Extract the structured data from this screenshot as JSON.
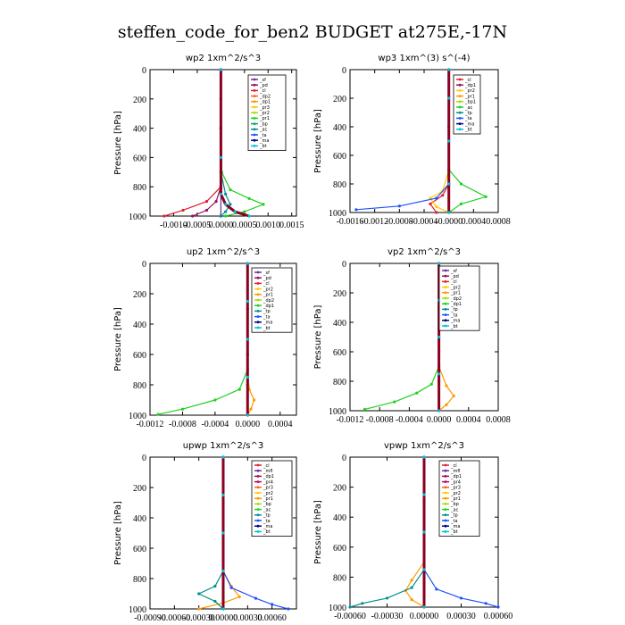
{
  "figure_title": "steffen_code_for_ben2  BUDGET at275E,-17N",
  "chart_data": [
    {
      "type": "line",
      "title": "wp2   1xm^2/s^3",
      "ylabel": "Pressure [hPa]",
      "xlim": [
        -0.0015,
        0.0016
      ],
      "ylim": [
        1000,
        0
      ],
      "xticks": [
        -0.001,
        -0.0005,
        0.0,
        0.0005,
        0.001,
        0.0015
      ],
      "xtick_labels": [
        "-0.0010",
        "-0.0005",
        "0.0000",
        "0.0005",
        "0.0010",
        "0.0015"
      ],
      "yticks": [
        0,
        200,
        400,
        600,
        800,
        1000
      ],
      "legend": [
        "_sf",
        "_pd",
        "_cl",
        "_dp2",
        "_dp1",
        "_pr3",
        "_pr2",
        "_pr1",
        "_bp",
        "_ac",
        "_ta",
        "_ma",
        "_bt"
      ],
      "colors": [
        "#7030a0",
        "#9a1060",
        "#e02030",
        "#ff6020",
        "#ff9900",
        "#ffcc00",
        "#a0e000",
        "#20d020",
        "#00b060",
        "#009090",
        "#2050ff",
        "#000080",
        "#00c0e0"
      ],
      "series": [
        {
          "name": "_sf",
          "x": [
            0,
            0,
            0,
            0,
            0,
            0
          ],
          "y": [
            0,
            200,
            400,
            600,
            800,
            1000
          ]
        },
        {
          "name": "_pd",
          "x": [
            0,
            0,
            0,
            -0.0001,
            -0.0003,
            -0.0006
          ],
          "y": [
            0,
            400,
            800,
            900,
            960,
            1000
          ]
        },
        {
          "name": "_cl",
          "x": [
            0,
            0,
            0,
            -0.0003,
            -0.0008,
            -0.0012
          ],
          "y": [
            0,
            400,
            800,
            900,
            960,
            1000
          ]
        },
        {
          "name": "_pr1",
          "x": [
            0,
            2e-05,
            0.0002,
            0.0006,
            0.0009,
            0.0005,
            0.0001
          ],
          "y": [
            0,
            700,
            820,
            880,
            920,
            970,
            1000
          ]
        },
        {
          "name": "_ac",
          "x": [
            0,
            0,
            0.0001,
            0.0002,
            0.0001,
            0
          ],
          "y": [
            0,
            700,
            850,
            920,
            970,
            1000
          ]
        },
        {
          "name": "_bt",
          "x": [
            0,
            0,
            0,
            0.0001,
            0.0003,
            0.0006
          ],
          "y": [
            0,
            600,
            850,
            920,
            970,
            1000
          ]
        }
      ]
    },
    {
      "type": "line",
      "title": "wp3   1xm^(3) s^(-4)",
      "ylabel": "Pressure [hPa]",
      "xlim": [
        -0.0016,
        0.0008
      ],
      "ylim": [
        1000,
        0
      ],
      "xticks": [
        -0.0016,
        -0.0012,
        -0.0008,
        -0.0004,
        0.0,
        0.0004,
        0.0008
      ],
      "xtick_labels": [
        "-0.0016",
        "-0.0012",
        "-0.0008",
        "-0.0004",
        "-0.0000",
        "0.0004",
        "0.0008"
      ],
      "yticks": [
        0,
        200,
        400,
        600,
        800,
        1000
      ],
      "legend": [
        "_cl",
        "_dp1",
        "_pr2",
        "_pr1",
        "_bp1",
        "_ac",
        "_tp",
        "_ta",
        "_ma",
        "_bt"
      ],
      "colors": [
        "#e02030",
        "#9a1060",
        "#ffcc00",
        "#ff9900",
        "#a0e000",
        "#20d020",
        "#009090",
        "#2050ff",
        "#000080",
        "#00c0e0"
      ],
      "series": [
        {
          "name": "_cl",
          "x": [
            0,
            0,
            0,
            -0.0001,
            -0.0003,
            -0.0002
          ],
          "y": [
            0,
            400,
            800,
            880,
            940,
            1000
          ]
        },
        {
          "name": "_pr2",
          "x": [
            0,
            0,
            -0.0001,
            -0.0003,
            -0.0002,
            0
          ],
          "y": [
            0,
            700,
            850,
            900,
            960,
            1000
          ]
        },
        {
          "name": "_ac",
          "x": [
            0,
            0,
            0.0002,
            0.0006,
            0.0002,
            0
          ],
          "y": [
            0,
            700,
            800,
            890,
            940,
            1000
          ]
        },
        {
          "name": "_ta",
          "x": [
            0,
            0,
            -0.0002,
            -0.0008,
            -0.0015
          ],
          "y": [
            0,
            800,
            900,
            955,
            980
          ]
        },
        {
          "name": "_bt",
          "x": [
            0,
            0,
            0,
            0,
            0
          ],
          "y": [
            0,
            200,
            500,
            800,
            1000
          ]
        }
      ]
    },
    {
      "type": "line",
      "title": "up2   1xm^2/s^3",
      "ylabel": "Pressure [hPa]",
      "xlim": [
        -0.0012,
        0.0006
      ],
      "ylim": [
        1000,
        0
      ],
      "xticks": [
        -0.0012,
        -0.0008,
        -0.0004,
        0.0,
        0.0004
      ],
      "xtick_labels": [
        "-0.0012",
        "-0.0008",
        "-0.0004",
        "0.0000",
        "0.0004"
      ],
      "yticks": [
        0,
        200,
        400,
        600,
        800,
        1000
      ],
      "legend": [
        "_sf",
        "_pd",
        "_cl",
        "_pr2",
        "_pr1",
        "_dp2",
        "_dp1",
        "_tp",
        "_ta",
        "_ma",
        "_bt"
      ],
      "colors": [
        "#7030a0",
        "#9a1060",
        "#e02030",
        "#ffcc00",
        "#ff9900",
        "#a0e000",
        "#20d020",
        "#009090",
        "#2050ff",
        "#000080",
        "#00c0e0"
      ],
      "series": [
        {
          "name": "_pd",
          "x": [
            0,
            0,
            0,
            0,
            0
          ],
          "y": [
            0,
            300,
            600,
            800,
            1000
          ]
        },
        {
          "name": "_pr1",
          "x": [
            0,
            0,
            2e-05,
            8e-05,
            4e-05,
            0
          ],
          "y": [
            0,
            700,
            830,
            900,
            960,
            1000
          ]
        },
        {
          "name": "_dp1",
          "x": [
            0,
            0,
            -0.0001,
            -0.0004,
            -0.0008,
            -0.0011
          ],
          "y": [
            0,
            700,
            830,
            900,
            960,
            995
          ]
        },
        {
          "name": "_bt",
          "x": [
            0,
            0,
            0,
            0,
            0
          ],
          "y": [
            0,
            250,
            500,
            750,
            1000
          ]
        }
      ]
    },
    {
      "type": "line",
      "title": "vp2   1xm^2/s^3",
      "ylabel": "Pressure [hPa]",
      "xlim": [
        -0.0012,
        0.0008
      ],
      "ylim": [
        1000,
        0
      ],
      "xticks": [
        -0.0012,
        -0.0008,
        -0.0004,
        0.0,
        0.0004,
        0.0008
      ],
      "xtick_labels": [
        "-0.0012",
        "-0.0008",
        "-0.0004",
        "0.0000",
        "0.0004",
        "0.0008"
      ],
      "yticks": [
        0,
        200,
        400,
        600,
        800,
        1000
      ],
      "legend": [
        "_sf",
        "_pd",
        "_cl",
        "_pr2",
        "_pr1",
        "_dp2",
        "_dp1",
        "_tp",
        "_ta",
        "_ma",
        "_bt"
      ],
      "colors": [
        "#7030a0",
        "#9a1060",
        "#e02030",
        "#ffcc00",
        "#ff9900",
        "#a0e000",
        "#20d020",
        "#009090",
        "#2050ff",
        "#000080",
        "#00c0e0"
      ],
      "series": [
        {
          "name": "_pd",
          "x": [
            0,
            0,
            0,
            0,
            0
          ],
          "y": [
            0,
            300,
            600,
            800,
            1000
          ]
        },
        {
          "name": "_pr1",
          "x": [
            0,
            0,
            0.0001,
            0.0002,
            0.0001,
            0
          ],
          "y": [
            0,
            700,
            830,
            900,
            960,
            1000
          ]
        },
        {
          "name": "_dp1",
          "x": [
            0,
            0,
            -0.0001,
            -0.0003,
            -0.0006,
            -0.001
          ],
          "y": [
            0,
            700,
            820,
            880,
            940,
            990
          ]
        },
        {
          "name": "_bt",
          "x": [
            0,
            0,
            0,
            0,
            0
          ],
          "y": [
            0,
            250,
            500,
            750,
            1000
          ]
        }
      ]
    },
    {
      "type": "line",
      "title": "upwp   1xm^2/s^3",
      "ylabel": "Pressure [hPa]",
      "xlim": [
        -0.0009,
        0.0009
      ],
      "ylim": [
        1000,
        0
      ],
      "xticks": [
        -0.0009,
        -0.0006,
        -0.0003,
        0.0,
        0.0003,
        0.0006
      ],
      "xtick_labels": [
        "-0.00090",
        "-0.00060",
        "-0.00030",
        "0.00000",
        "0.00030",
        "0.00060"
      ],
      "yticks": [
        0,
        200,
        400,
        600,
        800,
        1000
      ],
      "legend": [
        "_cl",
        "_mfl",
        "_dp1",
        "_pr4",
        "_pr3",
        "_pr2",
        "_pr1",
        "_bp",
        "_ac",
        "_tp",
        "_ta",
        "_ma",
        "_bt"
      ],
      "colors": [
        "#e02030",
        "#7030a0",
        "#9a1060",
        "#c00060",
        "#ff6020",
        "#ffcc00",
        "#ff9900",
        "#a0e000",
        "#20d020",
        "#009090",
        "#2050ff",
        "#000080",
        "#00c0e0"
      ],
      "series": [
        {
          "name": "_cl",
          "x": [
            0,
            0,
            0,
            0,
            0
          ],
          "y": [
            0,
            300,
            600,
            800,
            1000
          ]
        },
        {
          "name": "_pr1",
          "x": [
            0,
            0,
            0.0001,
            0.0002,
            0,
            -0.0003
          ],
          "y": [
            0,
            750,
            850,
            920,
            960,
            1000
          ]
        },
        {
          "name": "_tp",
          "x": [
            0,
            0,
            -0.0001,
            -0.0003,
            -0.0001,
            0
          ],
          "y": [
            0,
            750,
            850,
            900,
            950,
            1000
          ]
        },
        {
          "name": "_ta",
          "x": [
            0,
            0,
            0.0001,
            0.0004,
            0.0006,
            0.0008
          ],
          "y": [
            0,
            750,
            860,
            930,
            970,
            1000
          ]
        },
        {
          "name": "_bt",
          "x": [
            0,
            0,
            0,
            0,
            0
          ],
          "y": [
            0,
            250,
            500,
            750,
            1000
          ]
        }
      ]
    },
    {
      "type": "line",
      "title": "vpwp   1xm^2/s^3",
      "ylabel": "Pressure [hPa]",
      "xlim": [
        -0.0006,
        0.0006
      ],
      "ylim": [
        1000,
        0
      ],
      "xticks": [
        -0.0006,
        -0.0003,
        0.0,
        0.0003,
        0.0006
      ],
      "xtick_labels": [
        "-0.00060",
        "-0.00030",
        "0.00000",
        "0.00030",
        "0.00060"
      ],
      "yticks": [
        0,
        200,
        400,
        600,
        800,
        1000
      ],
      "legend": [
        "_cl",
        "_mfl",
        "_dp1",
        "_pr4",
        "_pr3",
        "_pr2",
        "_pr1",
        "_bp",
        "_ac",
        "_tp",
        "_ta",
        "_ma",
        "_bt"
      ],
      "colors": [
        "#e02030",
        "#7030a0",
        "#9a1060",
        "#c00060",
        "#ff6020",
        "#ffcc00",
        "#ff9900",
        "#a0e000",
        "#20d020",
        "#009090",
        "#2050ff",
        "#000080",
        "#00c0e0"
      ],
      "series": [
        {
          "name": "_cl",
          "x": [
            0,
            0,
            0,
            0,
            0
          ],
          "y": [
            0,
            300,
            600,
            800,
            1000
          ]
        },
        {
          "name": "_pr1",
          "x": [
            0,
            0,
            -0.0001,
            -0.00015,
            -0.0001,
            0
          ],
          "y": [
            0,
            700,
            820,
            890,
            950,
            1000
          ]
        },
        {
          "name": "_tp",
          "x": [
            0,
            0,
            -0.0001,
            -0.0003,
            -0.0005,
            -0.0006
          ],
          "y": [
            0,
            750,
            870,
            940,
            975,
            1000
          ]
        },
        {
          "name": "_ta",
          "x": [
            0,
            0,
            0.0001,
            0.0003,
            0.0005,
            0.0006
          ],
          "y": [
            0,
            750,
            880,
            940,
            975,
            1000
          ]
        },
        {
          "name": "_bt",
          "x": [
            0,
            0,
            0,
            0,
            0
          ],
          "y": [
            0,
            250,
            500,
            750,
            1000
          ]
        }
      ]
    }
  ]
}
